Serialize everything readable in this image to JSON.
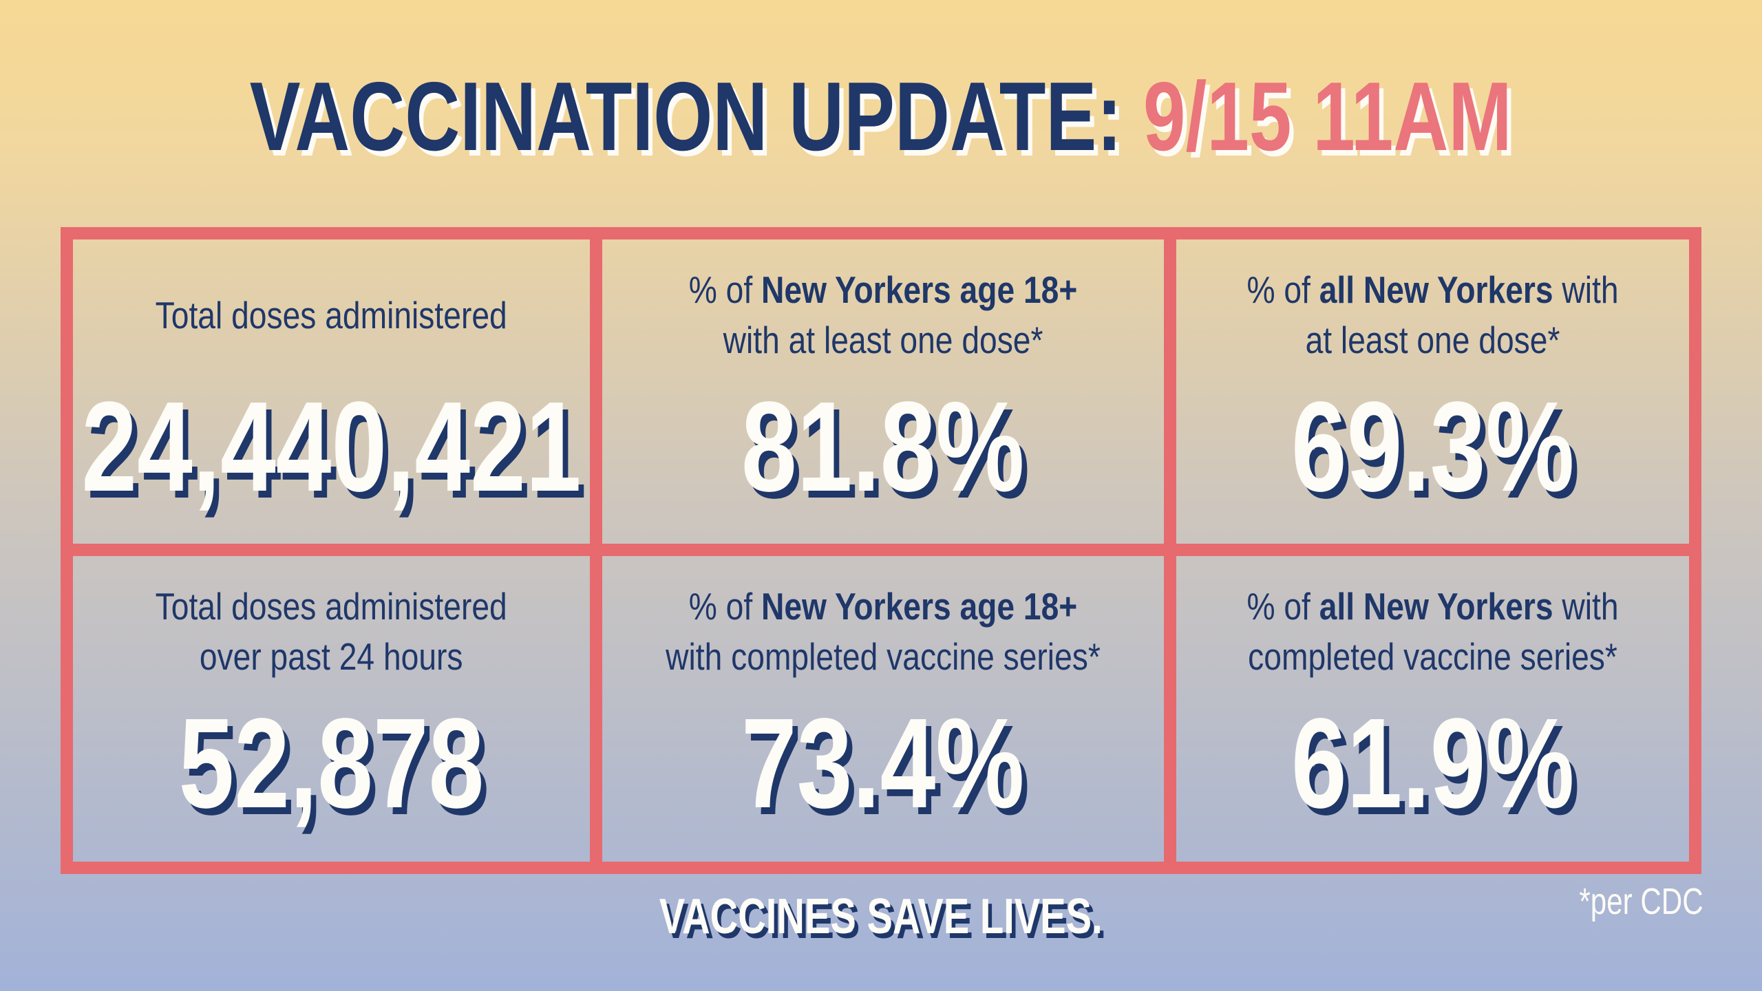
{
  "title": {
    "prefix": "VACCINATION UPDATE: ",
    "datetime": "9/15 11AM"
  },
  "cells": [
    {
      "id": "total-doses",
      "label_lines": [
        [
          {
            "t": "Total doses administered",
            "b": false
          }
        ]
      ],
      "value": "24,440,421"
    },
    {
      "id": "adults-one-dose",
      "label_lines": [
        [
          {
            "t": "% of ",
            "b": false
          },
          {
            "t": "New Yorkers age 18+",
            "b": true
          }
        ],
        [
          {
            "t": "with at least one dose*",
            "b": false
          }
        ]
      ],
      "value": "81.8%"
    },
    {
      "id": "all-one-dose",
      "label_lines": [
        [
          {
            "t": "% of ",
            "b": false
          },
          {
            "t": "all New Yorkers",
            "b": true
          },
          {
            "t": " with",
            "b": false
          }
        ],
        [
          {
            "t": "at least one dose*",
            "b": false
          }
        ]
      ],
      "value": "69.3%"
    },
    {
      "id": "doses-24-hours",
      "label_lines": [
        [
          {
            "t": "Total doses administered",
            "b": false
          }
        ],
        [
          {
            "t": "over past 24 hours",
            "b": false
          }
        ]
      ],
      "value": "52,878"
    },
    {
      "id": "adults-completed-series",
      "label_lines": [
        [
          {
            "t": "% of ",
            "b": false
          },
          {
            "t": "New Yorkers age 18+",
            "b": true
          }
        ],
        [
          {
            "t": "with completed vaccine series*",
            "b": false
          }
        ]
      ],
      "value": "73.4%"
    },
    {
      "id": "all-completed-series",
      "label_lines": [
        [
          {
            "t": "% of ",
            "b": false
          },
          {
            "t": "all New Yorkers",
            "b": true
          },
          {
            "t": " with",
            "b": false
          }
        ],
        [
          {
            "t": "completed vaccine series*",
            "b": false
          }
        ]
      ],
      "value": "61.9%"
    }
  ],
  "footer": {
    "tagline": "VACCINES SAVE LIVES.",
    "source_note": "*per CDC"
  },
  "colors": {
    "navy": "#1F3769",
    "coral_border": "#E76A6F",
    "coral_date": "#EA757C",
    "off_white": "#FDFCF7",
    "background_top": "#F6D994",
    "background_middle": "#CDC6BE",
    "background_bottom": "#A2B2D8"
  },
  "chart_data": {
    "type": "table",
    "title": "VACCINATION UPDATE: 9/15 11AM",
    "columns": [
      "metric",
      "value"
    ],
    "rows": [
      {
        "metric": "Total doses administered",
        "value": "24,440,421"
      },
      {
        "metric": "% of New Yorkers age 18+ with at least one dose*",
        "value": "81.8%"
      },
      {
        "metric": "% of all New Yorkers with at least one dose*",
        "value": "69.3%"
      },
      {
        "metric": "Total doses administered over past 24 hours",
        "value": "52,878"
      },
      {
        "metric": "% of New Yorkers age 18+ with completed vaccine series*",
        "value": "73.4%"
      },
      {
        "metric": "% of all New Yorkers with completed vaccine series*",
        "value": "61.9%"
      }
    ],
    "numeric_values": [
      24440421,
      81.8,
      69.3,
      52878,
      73.4,
      61.9
    ],
    "footnote": "*per CDC",
    "tagline": "VACCINES SAVE LIVES."
  }
}
